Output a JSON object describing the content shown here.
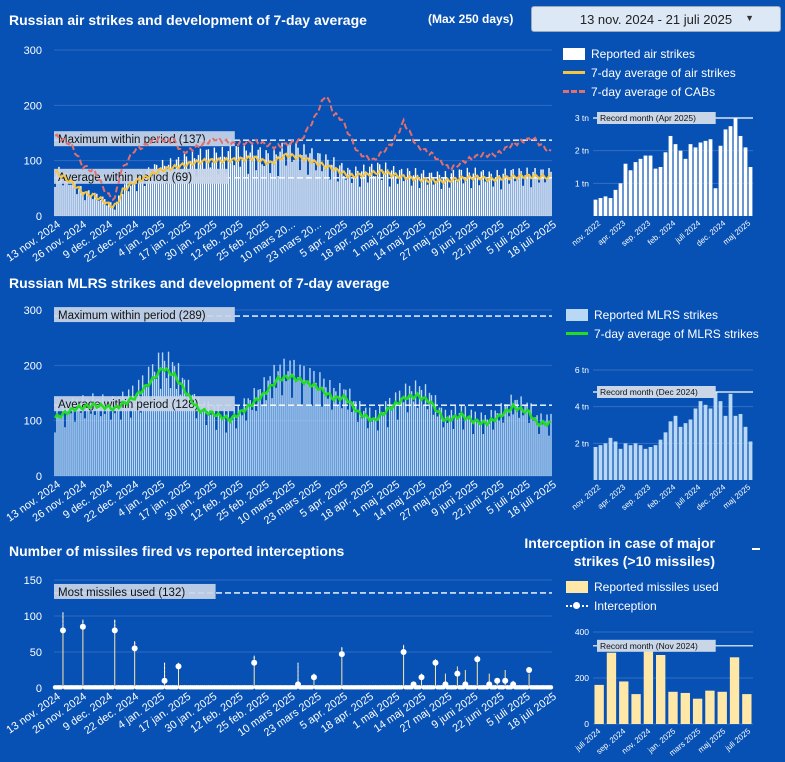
{
  "header": {
    "air_title": "Russian air strikes and development of 7-day average",
    "max_days": "(Max 250 days)",
    "date_range": "13 nov. 2024 - 21 juli 2025",
    "mlrs_title": "Russian MLRS strikes and development of 7-day average",
    "missile_title": "Number of missiles fired vs reported interceptions",
    "interception_title": "Interception in case of major strikes (>10 missiles)"
  },
  "colors": {
    "background": "#0750b4",
    "air_bar": "#ffffff",
    "air_avg": "#f5c542",
    "cab_avg": "#e07070",
    "mlrs_bar": "#b8d8f5",
    "mlrs_avg": "#22dd22",
    "missile_bar": "#ffe7a8",
    "interception": "#ffffff"
  },
  "legends": {
    "air": [
      "Reported air strikes",
      "7-day average of air strikes",
      "7-day average of CABs"
    ],
    "mlrs": [
      "Reported MLRS strikes",
      "7-day average of MLRS strikes"
    ],
    "missile": [
      "Reported missiles used",
      "Interception"
    ]
  },
  "chart_data": [
    {
      "id": "air",
      "type": "bar",
      "x_ticks": [
        "13 nov. 2024",
        "26 nov. 2024",
        "9 dec. 2024",
        "22 dec. 2024",
        "4 jan. 2025",
        "17 jan. 2025",
        "30 jan. 2025",
        "12 feb. 2025",
        "25 feb. 2025",
        "10 mars 20...",
        "23 mars 20...",
        "5 apr. 2025",
        "18 apr. 2025",
        "1 maj 2025",
        "14 maj 2025",
        "27 maj 2025",
        "9 juni 2025",
        "22 juni 2025",
        "5 juli 2025",
        "18 juli 2025"
      ],
      "y_ticks": [
        0,
        100,
        200,
        300
      ],
      "ylim": [
        0,
        300
      ],
      "bar_keys": [
        [
          0,
          75
        ],
        [
          8,
          60
        ],
        [
          14,
          40
        ],
        [
          20,
          35
        ],
        [
          26,
          25
        ],
        [
          30,
          15
        ],
        [
          34,
          45
        ],
        [
          40,
          60
        ],
        [
          46,
          70
        ],
        [
          52,
          80
        ],
        [
          60,
          85
        ],
        [
          68,
          95
        ],
        [
          76,
          100
        ],
        [
          84,
          100
        ],
        [
          92,
          105
        ],
        [
          100,
          105
        ],
        [
          108,
          95
        ],
        [
          116,
          110
        ],
        [
          124,
          105
        ],
        [
          132,
          95
        ],
        [
          140,
          85
        ],
        [
          148,
          70
        ],
        [
          156,
          75
        ],
        [
          164,
          80
        ],
        [
          172,
          70
        ],
        [
          180,
          70
        ],
        [
          188,
          65
        ],
        [
          196,
          65
        ],
        [
          204,
          70
        ],
        [
          212,
          70
        ],
        [
          219,
          65
        ],
        [
          228,
          70
        ],
        [
          238,
          70
        ],
        [
          249,
          70
        ]
      ],
      "avg_air_keys": [
        [
          0,
          80
        ],
        [
          8,
          62
        ],
        [
          14,
          42
        ],
        [
          20,
          36
        ],
        [
          25,
          26
        ],
        [
          28,
          18
        ],
        [
          31,
          20
        ],
        [
          34,
          46
        ],
        [
          40,
          62
        ],
        [
          46,
          70
        ],
        [
          52,
          82
        ],
        [
          60,
          88
        ],
        [
          68,
          95
        ],
        [
          76,
          100
        ],
        [
          84,
          100
        ],
        [
          92,
          102
        ],
        [
          100,
          105
        ],
        [
          108,
          95
        ],
        [
          116,
          110
        ],
        [
          124,
          105
        ],
        [
          132,
          95
        ],
        [
          140,
          85
        ],
        [
          148,
          72
        ],
        [
          156,
          75
        ],
        [
          164,
          80
        ],
        [
          172,
          72
        ],
        [
          180,
          68
        ],
        [
          188,
          64
        ],
        [
          196,
          63
        ],
        [
          204,
          68
        ],
        [
          212,
          70
        ],
        [
          219,
          66
        ],
        [
          228,
          70
        ],
        [
          238,
          72
        ],
        [
          249,
          70
        ]
      ],
      "avg_cab_keys": [
        [
          0,
          145
        ],
        [
          8,
          130
        ],
        [
          14,
          90
        ],
        [
          20,
          80
        ],
        [
          26,
          40
        ],
        [
          30,
          30
        ],
        [
          33,
          80
        ],
        [
          40,
          120
        ],
        [
          44,
          125
        ],
        [
          52,
          140
        ],
        [
          60,
          135
        ],
        [
          64,
          115
        ],
        [
          72,
          125
        ],
        [
          80,
          140
        ],
        [
          90,
          130
        ],
        [
          100,
          135
        ],
        [
          110,
          125
        ],
        [
          118,
          130
        ],
        [
          124,
          140
        ],
        [
          130,
          175
        ],
        [
          136,
          220
        ],
        [
          140,
          185
        ],
        [
          144,
          175
        ],
        [
          152,
          115
        ],
        [
          160,
          100
        ],
        [
          170,
          135
        ],
        [
          175,
          170
        ],
        [
          182,
          125
        ],
        [
          190,
          110
        ],
        [
          198,
          85
        ],
        [
          206,
          100
        ],
        [
          214,
          110
        ],
        [
          222,
          112
        ],
        [
          230,
          130
        ],
        [
          240,
          140
        ],
        [
          249,
          115
        ]
      ],
      "reference_lines": [
        {
          "label": "Maximum within period (137)",
          "value": 137
        },
        {
          "label": "Average within period (69)",
          "value": 69
        }
      ],
      "inset": {
        "type": "bar",
        "record_label": "Record month (Apr 2025)",
        "y_ticks": [
          "1 tn",
          "2 tn",
          "3 tn"
        ],
        "ylim": [
          0,
          3
        ],
        "x_ticks": [
          "nov. 2022",
          "apr. 2023",
          "sep. 2023",
          "feb. 2024",
          "juli 2024",
          "dec. 2024",
          "maj 2025"
        ],
        "values": [
          0.5,
          0.55,
          0.6,
          0.55,
          0.8,
          1.0,
          1.6,
          1.4,
          1.65,
          1.75,
          1.85,
          1.85,
          1.45,
          1.5,
          1.95,
          2.45,
          2.2,
          2.0,
          1.75,
          2.2,
          2.1,
          2.25,
          2.3,
          2.35,
          0.85,
          2.15,
          2.65,
          2.75,
          3.0,
          2.45,
          2.1,
          1.5
        ]
      }
    },
    {
      "id": "mlrs",
      "type": "bar",
      "x_ticks": [
        "13 nov. 2024",
        "26 nov. 2024",
        "9 dec. 2024",
        "22 dec. 2024",
        "4 jan. 2025",
        "17 jan. 2025",
        "30 jan. 2025",
        "12 feb. 2025",
        "25 feb. 2025",
        "10 mars 2025",
        "23 mars 2025",
        "5 apr. 2025",
        "18 apr. 2025",
        "1 maj 2025",
        "14 maj 2025",
        "27 maj 2025",
        "9 juni 2025",
        "22 juni 2025",
        "5 juli 2025",
        "18 juli 2025"
      ],
      "y_ticks": [
        0,
        100,
        200,
        300
      ],
      "ylim": [
        0,
        300
      ],
      "bar_keys": [
        [
          0,
          105
        ],
        [
          10,
          120
        ],
        [
          20,
          125
        ],
        [
          30,
          120
        ],
        [
          40,
          140
        ],
        [
          48,
          170
        ],
        [
          54,
          195
        ],
        [
          60,
          180
        ],
        [
          66,
          150
        ],
        [
          72,
          120
        ],
        [
          80,
          110
        ],
        [
          88,
          100
        ],
        [
          96,
          120
        ],
        [
          104,
          145
        ],
        [
          112,
          175
        ],
        [
          118,
          180
        ],
        [
          124,
          170
        ],
        [
          132,
          160
        ],
        [
          140,
          140
        ],
        [
          146,
          140
        ],
        [
          152,
          115
        ],
        [
          160,
          100
        ],
        [
          168,
          120
        ],
        [
          176,
          140
        ],
        [
          182,
          145
        ],
        [
          188,
          135
        ],
        [
          196,
          100
        ],
        [
          204,
          110
        ],
        [
          210,
          100
        ],
        [
          216,
          95
        ],
        [
          222,
          105
        ],
        [
          230,
          125
        ],
        [
          238,
          115
        ],
        [
          242,
          95
        ],
        [
          249,
          95
        ]
      ],
      "avg_keys": [
        [
          0,
          105
        ],
        [
          10,
          122
        ],
        [
          20,
          128
        ],
        [
          30,
          122
        ],
        [
          40,
          142
        ],
        [
          48,
          170
        ],
        [
          54,
          195
        ],
        [
          60,
          182
        ],
        [
          66,
          150
        ],
        [
          72,
          120
        ],
        [
          80,
          112
        ],
        [
          88,
          102
        ],
        [
          96,
          122
        ],
        [
          104,
          145
        ],
        [
          112,
          175
        ],
        [
          118,
          180
        ],
        [
          124,
          172
        ],
        [
          132,
          160
        ],
        [
          140,
          140
        ],
        [
          146,
          142
        ],
        [
          152,
          115
        ],
        [
          160,
          100
        ],
        [
          168,
          122
        ],
        [
          176,
          142
        ],
        [
          182,
          145
        ],
        [
          188,
          135
        ],
        [
          196,
          100
        ],
        [
          204,
          110
        ],
        [
          210,
          100
        ],
        [
          216,
          95
        ],
        [
          222,
          105
        ],
        [
          230,
          125
        ],
        [
          238,
          115
        ],
        [
          242,
          95
        ],
        [
          249,
          95
        ]
      ],
      "reference_lines": [
        {
          "label": "Maximum within period (289)",
          "value": 289
        },
        {
          "label": "Average within period (128)",
          "value": 128
        }
      ],
      "inset": {
        "type": "bar",
        "record_label": "Record month (Dec 2024)",
        "y_ticks": [
          "2 tn",
          "4 tn",
          "6 tn"
        ],
        "ylim": [
          0,
          6
        ],
        "x_ticks": [
          "nov. 2022",
          "apr. 2023",
          "sep. 2023",
          "feb. 2024",
          "juli 2024",
          "dec. 2024",
          "maj 2025"
        ],
        "values": [
          1.8,
          1.9,
          2.0,
          2.3,
          2.1,
          1.7,
          2.0,
          1.9,
          2.0,
          1.9,
          1.7,
          1.8,
          1.9,
          2.2,
          2.6,
          3.2,
          3.5,
          2.9,
          3.1,
          3.3,
          3.9,
          4.3,
          4.1,
          3.9,
          4.8,
          4.3,
          3.5,
          4.7,
          3.5,
          3.6,
          2.9,
          2.1
        ]
      }
    },
    {
      "id": "missiles",
      "type": "bar",
      "x_ticks": [
        "13 nov. 2024",
        "26 nov. 2024",
        "9 dec. 2024",
        "22 dec. 2024",
        "4 jan. 2025",
        "17 jan. 2025",
        "30 jan. 2025",
        "12 feb. 2025",
        "25 feb. 2025",
        "10 mars 2025",
        "23 mars 2025",
        "5 apr. 2025",
        "18 apr. 2025",
        "1 maj 2025",
        "14 maj 2025",
        "27 maj 2025",
        "9 juni 2025",
        "22 juni 2025",
        "5 juli 2025",
        "18 juli 2025"
      ],
      "y_ticks": [
        0,
        50,
        100,
        150
      ],
      "ylim": [
        0,
        150
      ],
      "spikes": [
        [
          4,
          105,
          80
        ],
        [
          14,
          95,
          85
        ],
        [
          30,
          95,
          80
        ],
        [
          40,
          65,
          55
        ],
        [
          55,
          35,
          10
        ],
        [
          62,
          35,
          30
        ],
        [
          100,
          45,
          35
        ],
        [
          122,
          35,
          5
        ],
        [
          130,
          20,
          15
        ],
        [
          144,
          57,
          47
        ],
        [
          175,
          60,
          50
        ],
        [
          180,
          5,
          5
        ],
        [
          184,
          20,
          15
        ],
        [
          191,
          40,
          35
        ],
        [
          196,
          20,
          5
        ],
        [
          202,
          30,
          20
        ],
        [
          206,
          25,
          5
        ],
        [
          212,
          45,
          40
        ],
        [
          218,
          20,
          5
        ],
        [
          222,
          12,
          10
        ],
        [
          226,
          25,
          10
        ],
        [
          230,
          10,
          5
        ],
        [
          238,
          20,
          25
        ]
      ],
      "reference_lines": [
        {
          "label": "Most missiles used (132)",
          "value": 132
        }
      ],
      "inset": {
        "type": "bar",
        "record_label": "Record month (Nov 2024)",
        "y_ticks": [
          "0",
          "200",
          "400"
        ],
        "ylim": [
          0,
          400
        ],
        "x_ticks": [
          "juli 2024",
          "sep. 2024",
          "nov. 2024",
          "jan. 2025",
          "mars 2025",
          "maj 2025",
          "juli 2025"
        ],
        "values": [
          170,
          310,
          185,
          130,
          340,
          300,
          140,
          135,
          110,
          145,
          140,
          290,
          130
        ]
      }
    }
  ]
}
